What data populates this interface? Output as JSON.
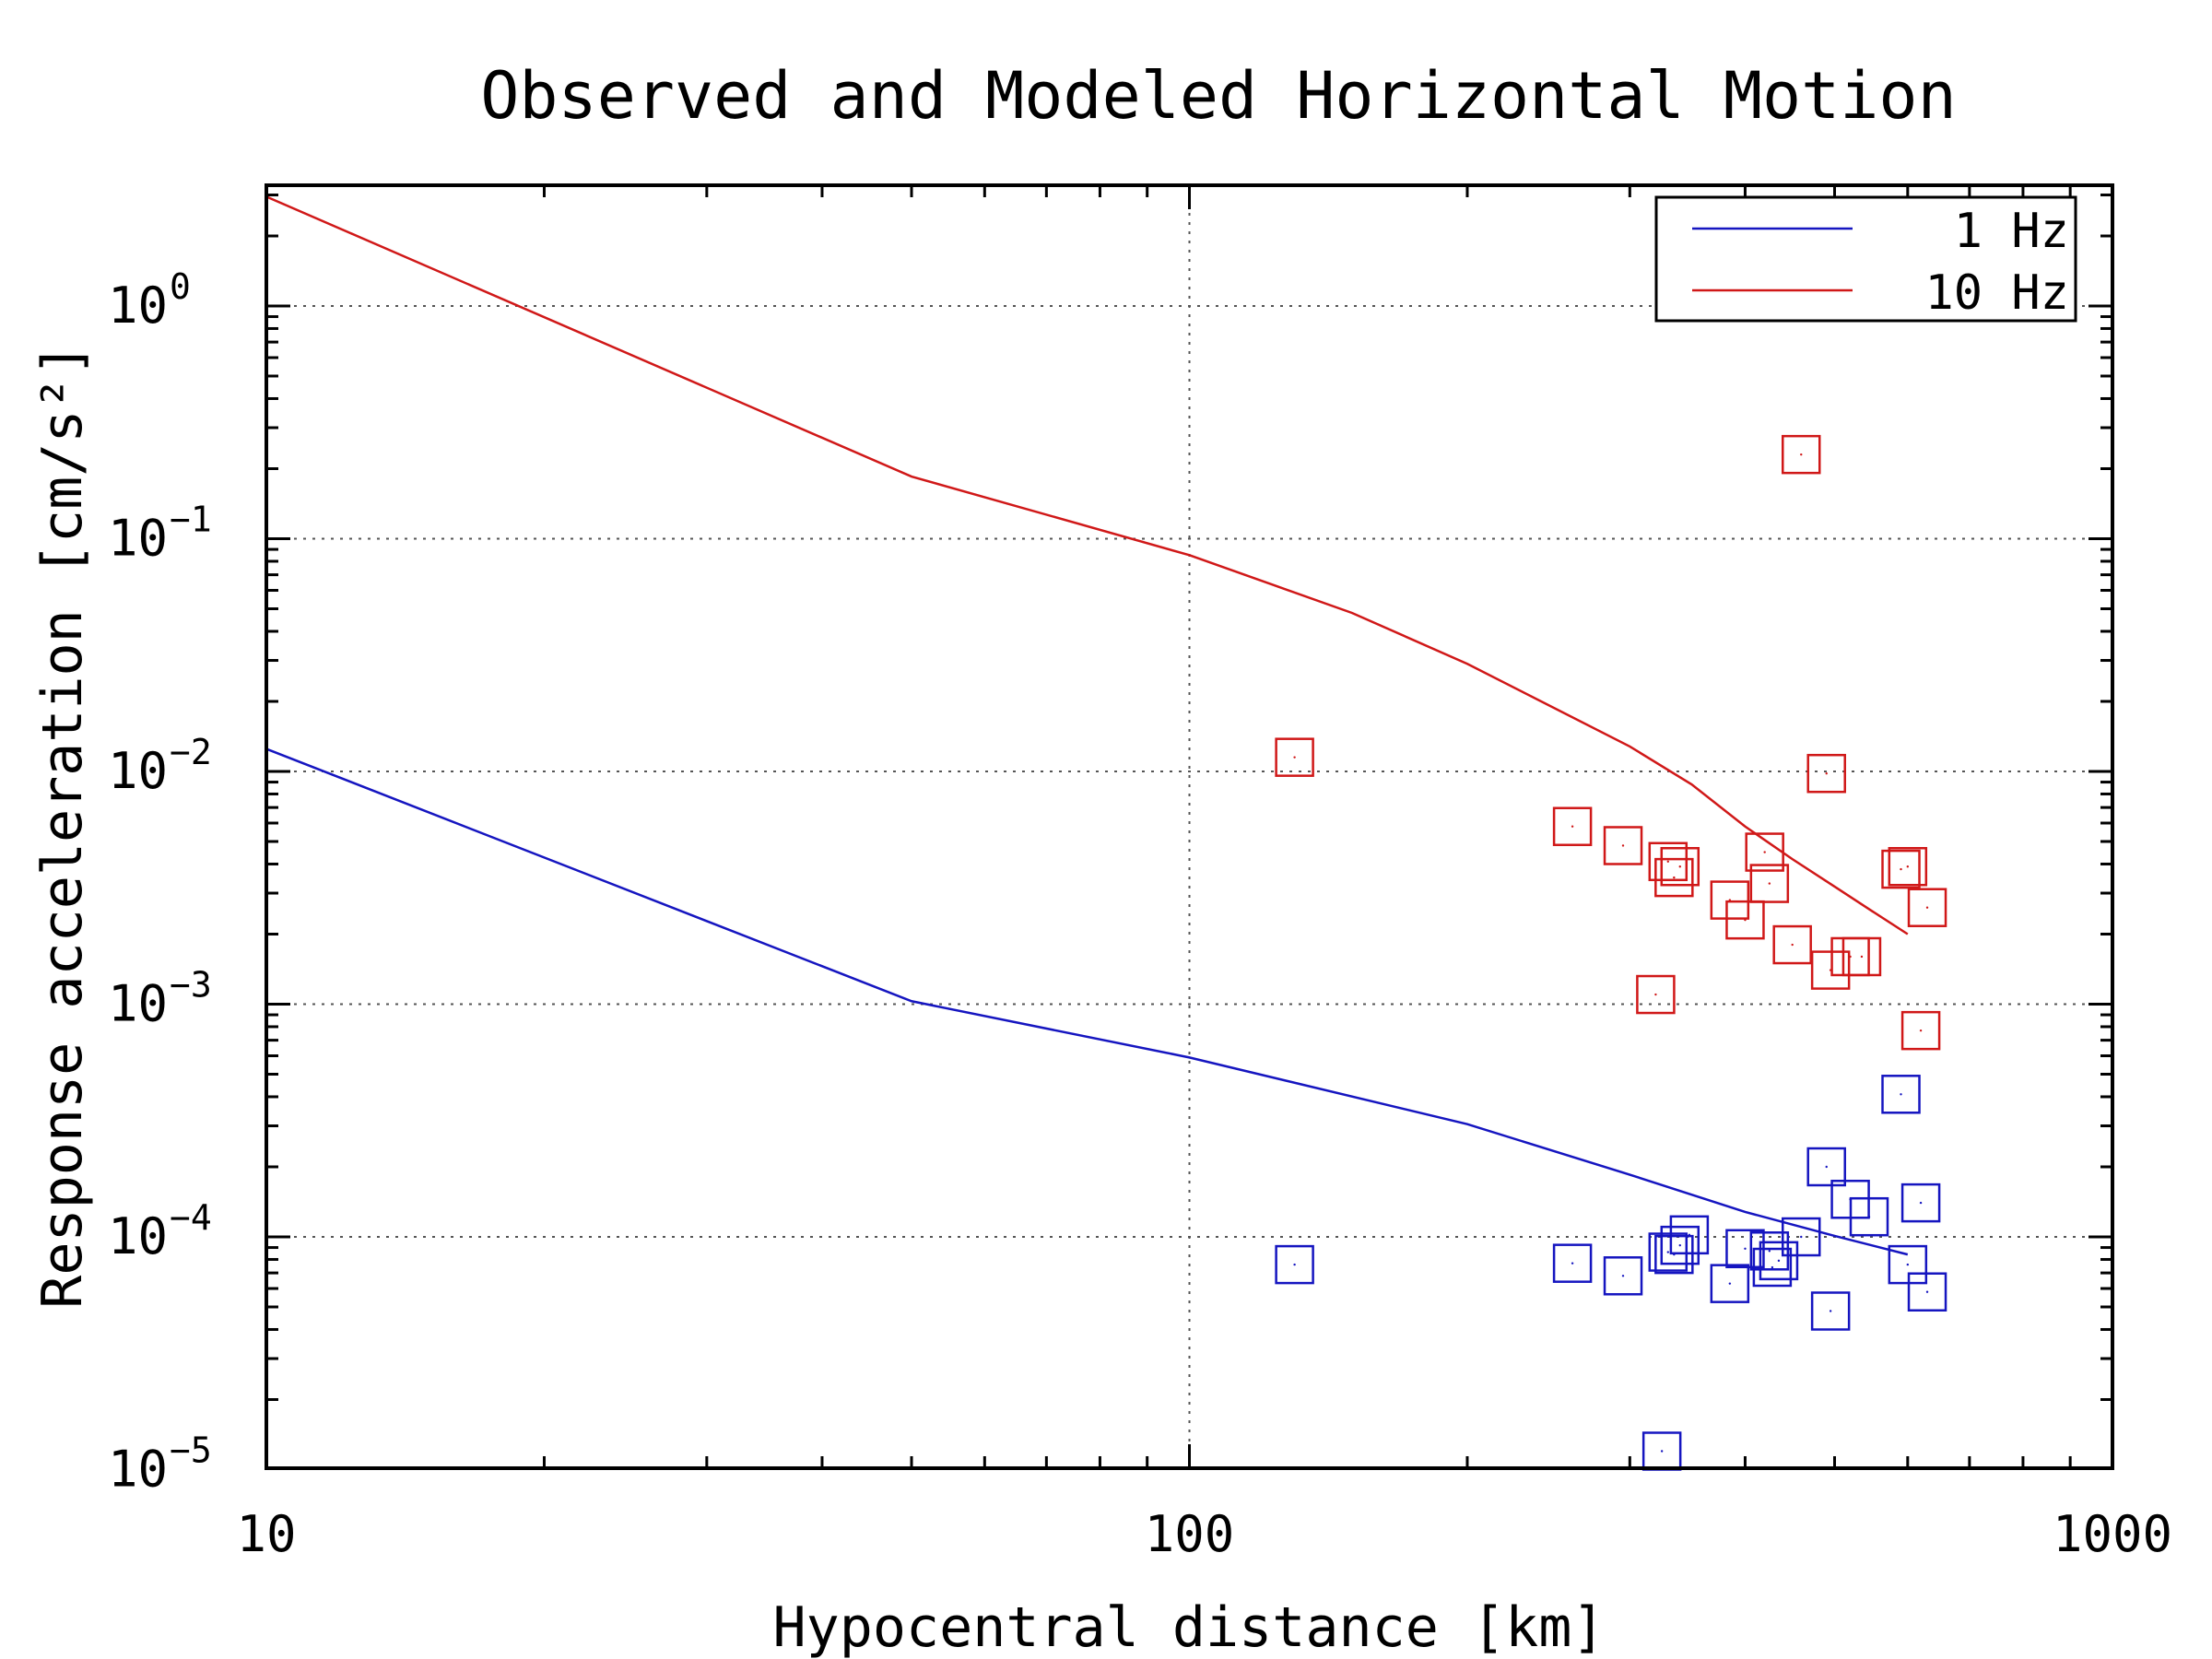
{
  "chart_data": {
    "type": "scatter",
    "title": "Observed and Modeled Horizontal Motion",
    "xlabel": "Hypocentral distance [km]",
    "ylabel": "Response acceleration [cm/s²]",
    "xscale": "log",
    "yscale": "log",
    "xlim": [
      10,
      1000
    ],
    "ylim": [
      1e-05,
      3
    ],
    "x_ticks": [
      "10",
      "100",
      "1000"
    ],
    "y_ticks": [
      {
        "base": "10",
        "exp": "0"
      },
      {
        "base": "10",
        "exp": "−1"
      },
      {
        "base": "10",
        "exp": "−2"
      },
      {
        "base": "10",
        "exp": "−3"
      },
      {
        "base": "10",
        "exp": "−4"
      },
      {
        "base": "10",
        "exp": "−5"
      }
    ],
    "grid": true,
    "legend": {
      "placement": "top-right",
      "entries": [
        "1 Hz",
        "10 Hz"
      ]
    },
    "series": [
      {
        "name": "1 Hz",
        "kind": "model-line",
        "color": "#1515c0",
        "x": [
          10,
          50,
          100,
          200,
          300,
          400,
          500,
          600
        ],
        "y": [
          0.0125,
          0.00103,
          0.00059,
          0.000305,
          0.000185,
          0.000128,
          0.000101,
          8.4e-05
        ]
      },
      {
        "name": "10 Hz",
        "kind": "model-line",
        "color": "#d01818",
        "x": [
          10,
          50,
          100,
          150,
          200,
          300,
          350,
          400,
          450,
          500,
          550,
          600
        ],
        "y": [
          2.95,
          0.185,
          0.085,
          0.048,
          0.029,
          0.0128,
          0.0088,
          0.0058,
          0.0042,
          0.0032,
          0.0025,
          0.002
        ]
      },
      {
        "name": "1 Hz",
        "kind": "observed",
        "color": "#1515c0",
        "x": [
          130,
          260,
          295,
          325,
          330,
          335,
          340,
          348,
          385,
          400,
          425,
          428,
          435,
          460,
          490,
          495,
          520,
          545,
          590,
          600,
          620,
          630
        ],
        "y": [
          7.6e-05,
          7.7e-05,
          6.8e-05,
          1.2e-05,
          8.6e-05,
          8.4e-05,
          9.2e-05,
          0.000102,
          6.3e-05,
          8.9e-05,
          8.7e-05,
          7.4e-05,
          7.9e-05,
          0.0001,
          0.0002,
          4.8e-05,
          0.000145,
          0.000122,
          0.00041,
          7.6e-05,
          0.00014,
          5.8e-05
        ]
      },
      {
        "name": "10 Hz",
        "kind": "observed",
        "color": "#d01818",
        "x": [
          130,
          260,
          295,
          320,
          330,
          335,
          340,
          385,
          400,
          420,
          425,
          450,
          460,
          490,
          495,
          520,
          535,
          590,
          600,
          620,
          630
        ],
        "y": [
          0.0115,
          0.0058,
          0.0048,
          0.0011,
          0.0041,
          0.0035,
          0.0039,
          0.0028,
          0.0023,
          0.0045,
          0.0033,
          0.0018,
          0.23,
          0.0098,
          0.0014,
          0.0016,
          0.0016,
          0.0038,
          0.0039,
          0.00077,
          0.0026
        ]
      }
    ]
  }
}
